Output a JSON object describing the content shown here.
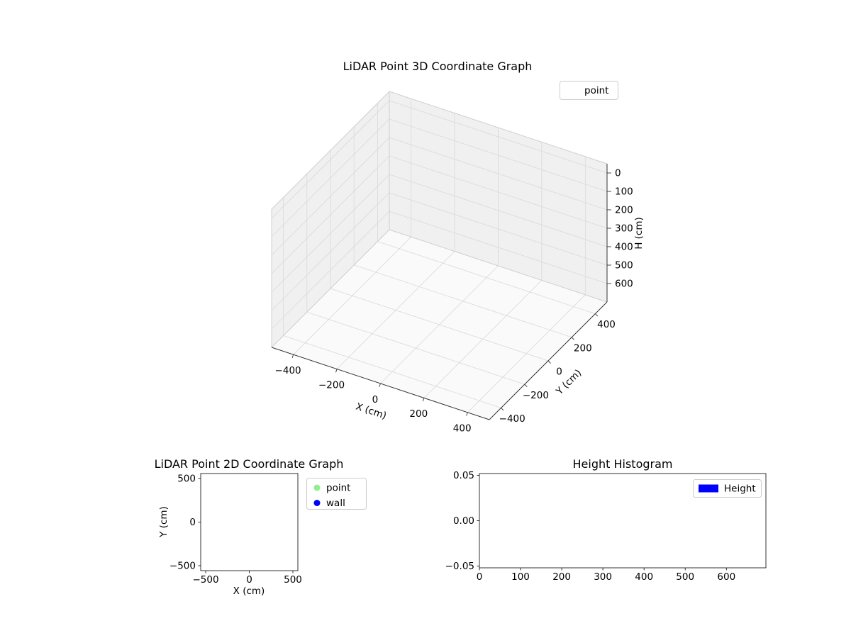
{
  "figure": {
    "background": "#ffffff"
  },
  "chart_data": [
    {
      "type": "scatter",
      "projection": "3d",
      "title": "LiDAR Point 3D Coordinate Graph",
      "xlabel": "X (cm)",
      "ylabel": "Y (cm)",
      "zlabel": "H (cm)",
      "xlim": [
        -500,
        500
      ],
      "ylim": [
        -500,
        500
      ],
      "zlim": [
        -50,
        700
      ],
      "zaxis_inverted": true,
      "xticks": [
        -400,
        -200,
        0,
        200,
        400
      ],
      "yticks": [
        -400,
        -200,
        0,
        200,
        400
      ],
      "zticks": [
        0,
        100,
        200,
        300,
        400,
        500,
        600
      ],
      "grid": true,
      "legend_position": "upper right",
      "series": [
        {
          "name": "point",
          "x": [],
          "y": [],
          "z": []
        }
      ]
    },
    {
      "type": "scatter",
      "title": "LiDAR Point 2D Coordinate Graph",
      "xlabel": "X (cm)",
      "ylabel": "Y (cm)",
      "xlim": [
        -557,
        557
      ],
      "ylim": [
        -557,
        557
      ],
      "xticks": [
        -500,
        0,
        500
      ],
      "yticks": [
        -500,
        0,
        500
      ],
      "grid": false,
      "legend_position": "outside upper right",
      "series": [
        {
          "name": "point",
          "color": "#90ee90",
          "x": [],
          "y": []
        },
        {
          "name": "wall",
          "color": "#0000ff",
          "x": [],
          "y": []
        }
      ]
    },
    {
      "type": "bar",
      "title": "Height Histogram",
      "xlabel": "",
      "ylabel": "",
      "xlim": [
        0,
        696
      ],
      "ylim": [
        -0.052,
        0.052
      ],
      "xticks": [
        0,
        100,
        200,
        300,
        400,
        500,
        600
      ],
      "yticks": [
        -0.05,
        0,
        0.05
      ],
      "ytick_labels": [
        "−0.05",
        "0.00",
        "0.05"
      ],
      "grid": false,
      "legend_position": "upper right",
      "series": [
        {
          "name": "Height",
          "color": "#0000ff",
          "values": []
        }
      ]
    }
  ]
}
